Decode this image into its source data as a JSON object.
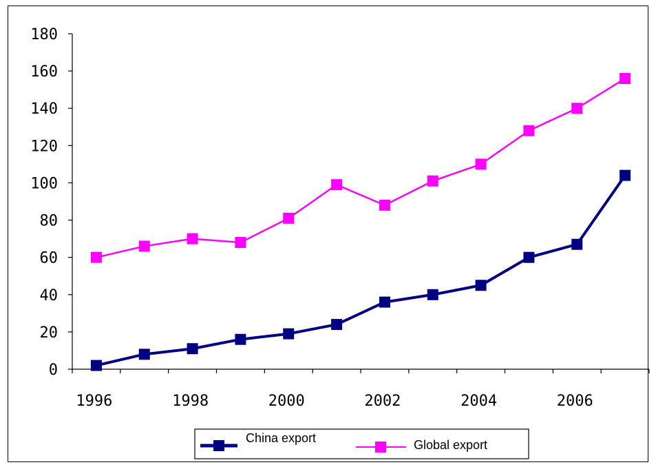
{
  "chart_data": {
    "type": "line",
    "title": "",
    "xlabel": "",
    "ylabel": "",
    "x": [
      1996,
      1997,
      1998,
      1999,
      2000,
      2001,
      2002,
      2003,
      2004,
      2005,
      2006,
      2007
    ],
    "x_tick_labels": [
      "1996",
      "1998",
      "2000",
      "2002",
      "2004",
      "2006"
    ],
    "y_tick_labels": [
      "0",
      "20",
      "40",
      "60",
      "80",
      "100",
      "120",
      "140",
      "160",
      "180"
    ],
    "ylim": [
      0,
      180
    ],
    "grid": false,
    "legend_position": "bottom",
    "series": [
      {
        "name": "China export",
        "color": "#000080",
        "marker": "square",
        "values": [
          2,
          8,
          11,
          16,
          19,
          24,
          36,
          40,
          45,
          60,
          67,
          104
        ]
      },
      {
        "name": "Global export",
        "color": "#ff00ff",
        "marker": "square",
        "values": [
          60,
          66,
          70,
          68,
          81,
          99,
          88,
          101,
          110,
          128,
          140,
          156
        ]
      }
    ]
  }
}
